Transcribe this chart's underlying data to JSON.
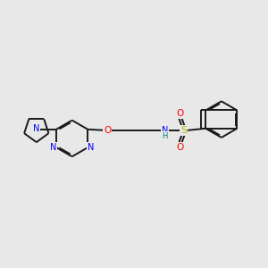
{
  "bg_color": "#e8e8e8",
  "bond_color": "#1a1a1a",
  "N_color": "#0000ff",
  "O_color": "#ff0000",
  "S_color": "#b8b800",
  "NH_color": "#008080",
  "line_width": 1.4,
  "figsize": [
    3.0,
    3.0
  ],
  "dpi": 100,
  "xlim": [
    0,
    12
  ],
  "ylim": [
    0,
    12
  ]
}
